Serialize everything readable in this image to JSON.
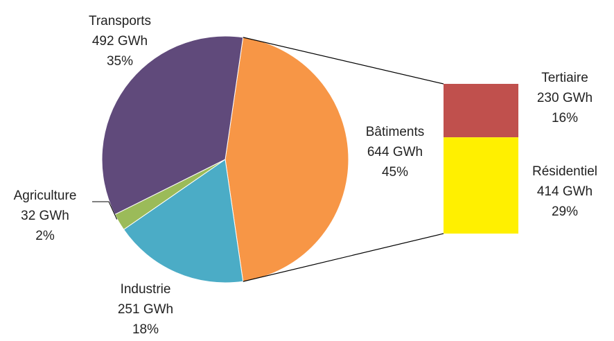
{
  "chart_data": {
    "type": "bar-of-pie",
    "pie": [
      {
        "name": "Bâtiments",
        "value_label": "644 GWh",
        "value": 644,
        "percent_label": "45%",
        "color": "#F79646"
      },
      {
        "name": "Industrie",
        "value_label": "251 GWh",
        "value": 251,
        "percent_label": "18%",
        "color": "#4BACC6"
      },
      {
        "name": "Agriculture",
        "value_label": "32 GWh",
        "value": 32,
        "percent_label": "2%",
        "color": "#9BBB59"
      },
      {
        "name": "Transports",
        "value_label": "492 GWh",
        "value": 492,
        "percent_label": "35%",
        "color": "#604A7B"
      }
    ],
    "bar": [
      {
        "name": "Tertiaire",
        "value_label": "230 GWh",
        "value": 230,
        "percent_label": "16%",
        "color": "#C0504D"
      },
      {
        "name": "Résidentiel",
        "value_label": "414 GWh",
        "value": 414,
        "percent_label": "29%",
        "color": "#FFF000"
      }
    ]
  }
}
